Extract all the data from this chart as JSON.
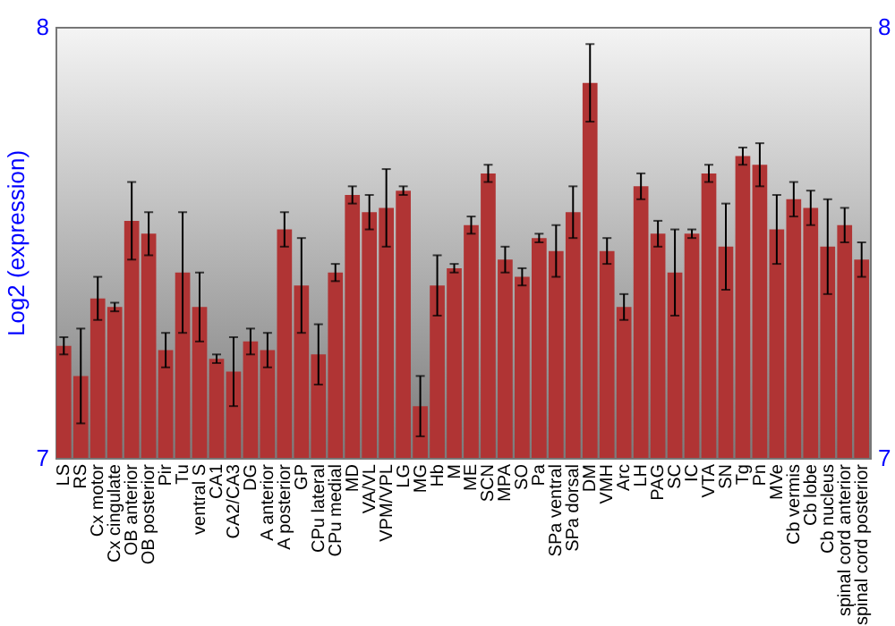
{
  "chart_data": {
    "type": "bar",
    "ylabel": "Log2 (expression)",
    "categories": [
      "LS",
      "RS",
      "Cx motor",
      "Cx cingulate",
      "OB anterior",
      "OB posterior",
      "Pir",
      "Tu",
      "ventral S",
      "CA1",
      "CA2/CA3",
      "DG",
      "A anterior",
      "A posterior",
      "GP",
      "CPu lateral",
      "CPu medial",
      "MD",
      "VA/VL",
      "VPM/VPL",
      "LG",
      "MG",
      "Hb",
      "M",
      "ME",
      "SCN",
      "MPA",
      "SO",
      "Pa",
      "SPa ventral",
      "SPa dorsal",
      "DM",
      "VMH",
      "Arc",
      "LH",
      "PAG",
      "SC",
      "IC",
      "VTA",
      "SN",
      "Tg",
      "Pn",
      "MVe",
      "Cb vermis",
      "Cb lobe",
      "Cb nucleus",
      "spinal cord anterior",
      "spinal cord posterior"
    ],
    "values": [
      7.26,
      7.19,
      7.37,
      7.35,
      7.55,
      7.52,
      7.25,
      7.43,
      7.35,
      7.23,
      7.2,
      7.27,
      7.25,
      7.53,
      7.4,
      7.24,
      7.43,
      7.61,
      7.57,
      7.58,
      7.62,
      7.12,
      7.4,
      7.44,
      7.54,
      7.66,
      7.46,
      7.42,
      7.51,
      7.48,
      7.57,
      7.87,
      7.48,
      7.35,
      7.63,
      7.52,
      7.43,
      7.52,
      7.66,
      7.49,
      7.7,
      7.68,
      7.53,
      7.6,
      7.58,
      7.49,
      7.54,
      7.46
    ],
    "errors": [
      0.02,
      0.11,
      0.05,
      0.01,
      0.09,
      0.05,
      0.04,
      0.14,
      0.08,
      0.01,
      0.08,
      0.03,
      0.04,
      0.04,
      0.11,
      0.07,
      0.02,
      0.02,
      0.04,
      0.09,
      0.01,
      0.07,
      0.07,
      0.01,
      0.02,
      0.02,
      0.03,
      0.02,
      0.01,
      0.06,
      0.06,
      0.09,
      0.03,
      0.03,
      0.03,
      0.03,
      0.1,
      0.01,
      0.02,
      0.1,
      0.02,
      0.05,
      0.08,
      0.04,
      0.04,
      0.11,
      0.04,
      0.04
    ],
    "color": "#b03434",
    "ylim": [
      7,
      8
    ],
    "yticks": [
      7,
      8
    ],
    "y2lim": [
      7,
      8
    ],
    "y2ticks": [
      7,
      8
    ]
  }
}
